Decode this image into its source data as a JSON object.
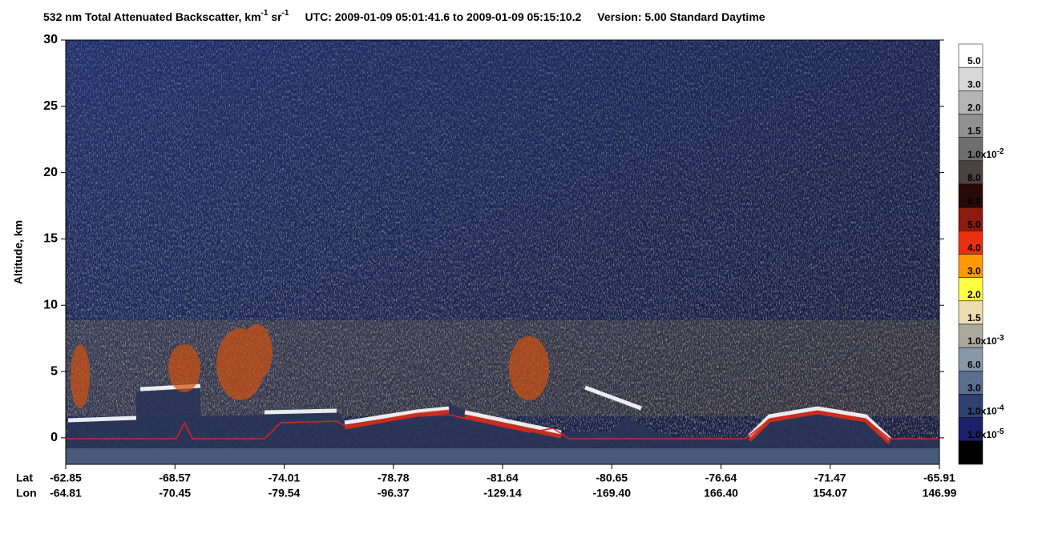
{
  "chart_data": {
    "type": "heatmap",
    "title_parts": [
      "532 nm Total Attenuated Backscatter, km",
      "-1",
      " sr",
      "-1",
      "UTC:  2009-01-09 05:01:41.6  to  2009-01-09 05:15:10.2",
      "Version: 5.00  Standard  Daytime"
    ],
    "y_label": "Altitude, km",
    "ylim": [
      -2,
      30
    ],
    "yticks": [
      0,
      5,
      10,
      15,
      20,
      25,
      30
    ],
    "x_row_labels": [
      "Lat",
      "Lon"
    ],
    "lat": [
      "-62.85",
      "-68.57",
      "-74.01",
      "-78.78",
      "-81.64",
      "-80.65",
      "-76.64",
      "-71.47",
      "-65.91"
    ],
    "lon": [
      "-64.81",
      "-70.45",
      "-79.54",
      "-96.37",
      "-129.14",
      "-169.40",
      "166.40",
      "154.07",
      "146.99"
    ],
    "colorbar": {
      "colors": [
        "#ffffff",
        "#d8d8d8",
        "#b4b4b4",
        "#909090",
        "#6e6e6e",
        "#4a4240",
        "#2a0a08",
        "#8b1a10",
        "#e83010",
        "#ff9900",
        "#ffff40",
        "#ecdcb0",
        "#aaaa9c",
        "#8898a8",
        "#5a6e90",
        "#304070",
        "#1c2068",
        "#000000"
      ],
      "labels": [
        {
          "text": "5.0"
        },
        {
          "text": "3.0"
        },
        {
          "text": "2.0"
        },
        {
          "text": "1.5"
        },
        {
          "text": "1.0x10",
          "sup": "-2"
        },
        {
          "text": "8.0"
        },
        {
          "text": "6.0"
        },
        {
          "text": "5.0"
        },
        {
          "text": "4.0"
        },
        {
          "text": "3.0"
        },
        {
          "text": "2.0"
        },
        {
          "text": "1.5"
        },
        {
          "text": "1.0x10",
          "sup": "-3"
        },
        {
          "text": "6.0"
        },
        {
          "text": "3.0"
        },
        {
          "text": "1.0x10",
          "sup": "-4"
        },
        {
          "text": "1.0x10",
          "sup": "-5"
        }
      ]
    }
  }
}
